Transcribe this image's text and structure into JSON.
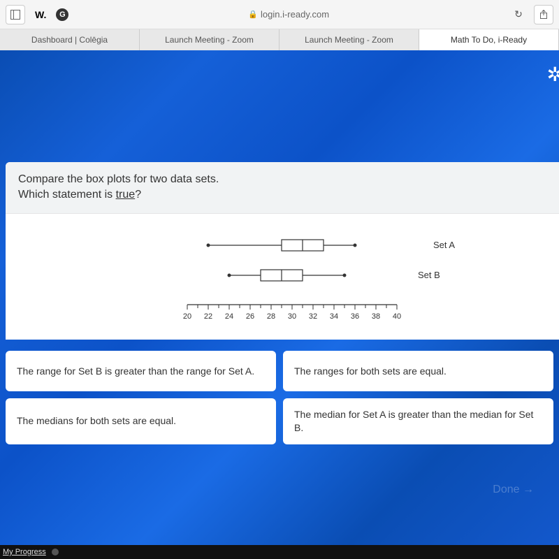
{
  "browser": {
    "url": "login.i-ready.com",
    "indicator1": "W.",
    "tabs": [
      {
        "label": "Dashboard | Colēgia"
      },
      {
        "label": "Launch Meeting - Zoom"
      },
      {
        "label": "Launch Meeting - Zoom"
      },
      {
        "label": "Math To Do, i-Ready"
      }
    ],
    "active_tab_index": 3
  },
  "question": {
    "line1": "Compare the box plots for two data sets.",
    "line2_prefix": "Which statement is ",
    "line2_underlined": "true",
    "line2_suffix": "?"
  },
  "boxplot": {
    "axis": {
      "min": 20,
      "max": 40,
      "tick_step": 1,
      "label_step": 2
    },
    "set_a": {
      "label": "Set A",
      "min": 22,
      "q1": 29,
      "median": 31,
      "q3": 33,
      "max": 36
    },
    "set_b": {
      "label": "Set B",
      "min": 24,
      "q1": 27,
      "median": 29,
      "q3": 31,
      "max": 35
    },
    "colors": {
      "stroke": "#333333",
      "box_fill": "#ffffff",
      "background": "#ffffff"
    }
  },
  "answers": [
    {
      "text": "The range for Set B is greater than the range for Set A."
    },
    {
      "text": "The ranges for both sets are equal."
    },
    {
      "text": "The medians for both sets are equal."
    },
    {
      "text": "The median for Set A is greater than the median for Set B."
    }
  ],
  "done_label": "Done →",
  "bottom_bar": {
    "progress_label": "My Progress"
  }
}
